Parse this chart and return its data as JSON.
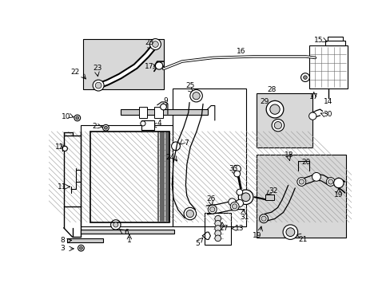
{
  "bg_color": "#ffffff",
  "line_color": "#000000",
  "fig_width": 4.89,
  "fig_height": 3.6,
  "dpi": 100,
  "gray_fill": "#d8d8d8",
  "light_gray": "#e8e8e8"
}
